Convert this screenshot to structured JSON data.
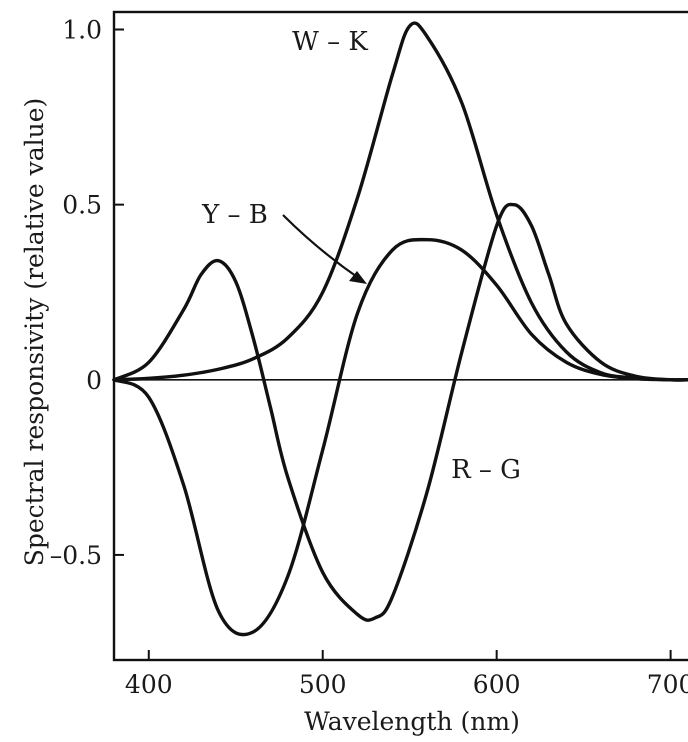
{
  "chart_data": {
    "type": "line",
    "title": "",
    "xlabel": "Wavelength (nm)",
    "ylabel": "Spectral responsivity (relative value)",
    "xlim": [
      380,
      710
    ],
    "ylim": [
      -0.8,
      1.05
    ],
    "grid": false,
    "legend": "none",
    "x_ticks": [
      {
        "value": 400,
        "label": "400"
      },
      {
        "value": 500,
        "label": "500"
      },
      {
        "value": 600,
        "label": "600"
      },
      {
        "value": 700,
        "label": "700"
      }
    ],
    "y_ticks": [
      {
        "value": 1.0,
        "label": "1.0"
      },
      {
        "value": 0.5,
        "label": "0.5"
      },
      {
        "value": 0,
        "label": "0"
      },
      {
        "value": -0.5,
        "label": "–0.5"
      }
    ],
    "series": [
      {
        "name": "W – K",
        "x": [
          380,
          400,
          420,
          440,
          460,
          480,
          500,
          520,
          540,
          550,
          560,
          580,
          600,
          620,
          640,
          660,
          680,
          700,
          710
        ],
        "y": [
          0.0,
          0.004,
          0.013,
          0.03,
          0.06,
          0.12,
          0.25,
          0.52,
          0.87,
          1.01,
          0.98,
          0.79,
          0.47,
          0.22,
          0.08,
          0.02,
          0.005,
          0.0,
          0.0
        ]
      },
      {
        "name": "Y – B",
        "x": [
          380,
          400,
          420,
          440,
          460,
          480,
          500,
          520,
          540,
          560,
          580,
          600,
          620,
          640,
          660,
          680,
          700,
          710
        ],
        "y": [
          0.0,
          -0.05,
          -0.3,
          -0.66,
          -0.72,
          -0.56,
          -0.2,
          0.19,
          0.37,
          0.4,
          0.37,
          0.27,
          0.13,
          0.05,
          0.015,
          0.003,
          0.0,
          0.0
        ]
      },
      {
        "name": "R – G",
        "x": [
          380,
          400,
          420,
          430,
          440,
          450,
          460,
          470,
          480,
          500,
          520,
          530,
          540,
          560,
          580,
          600,
          610,
          620,
          630,
          640,
          660,
          680,
          700,
          710
        ],
        "y": [
          0.0,
          0.05,
          0.2,
          0.3,
          0.34,
          0.28,
          0.12,
          -0.08,
          -0.28,
          -0.55,
          -0.67,
          -0.68,
          -0.62,
          -0.32,
          0.08,
          0.44,
          0.5,
          0.44,
          0.3,
          0.16,
          0.05,
          0.01,
          0.0,
          0.0
        ]
      }
    ]
  }
}
